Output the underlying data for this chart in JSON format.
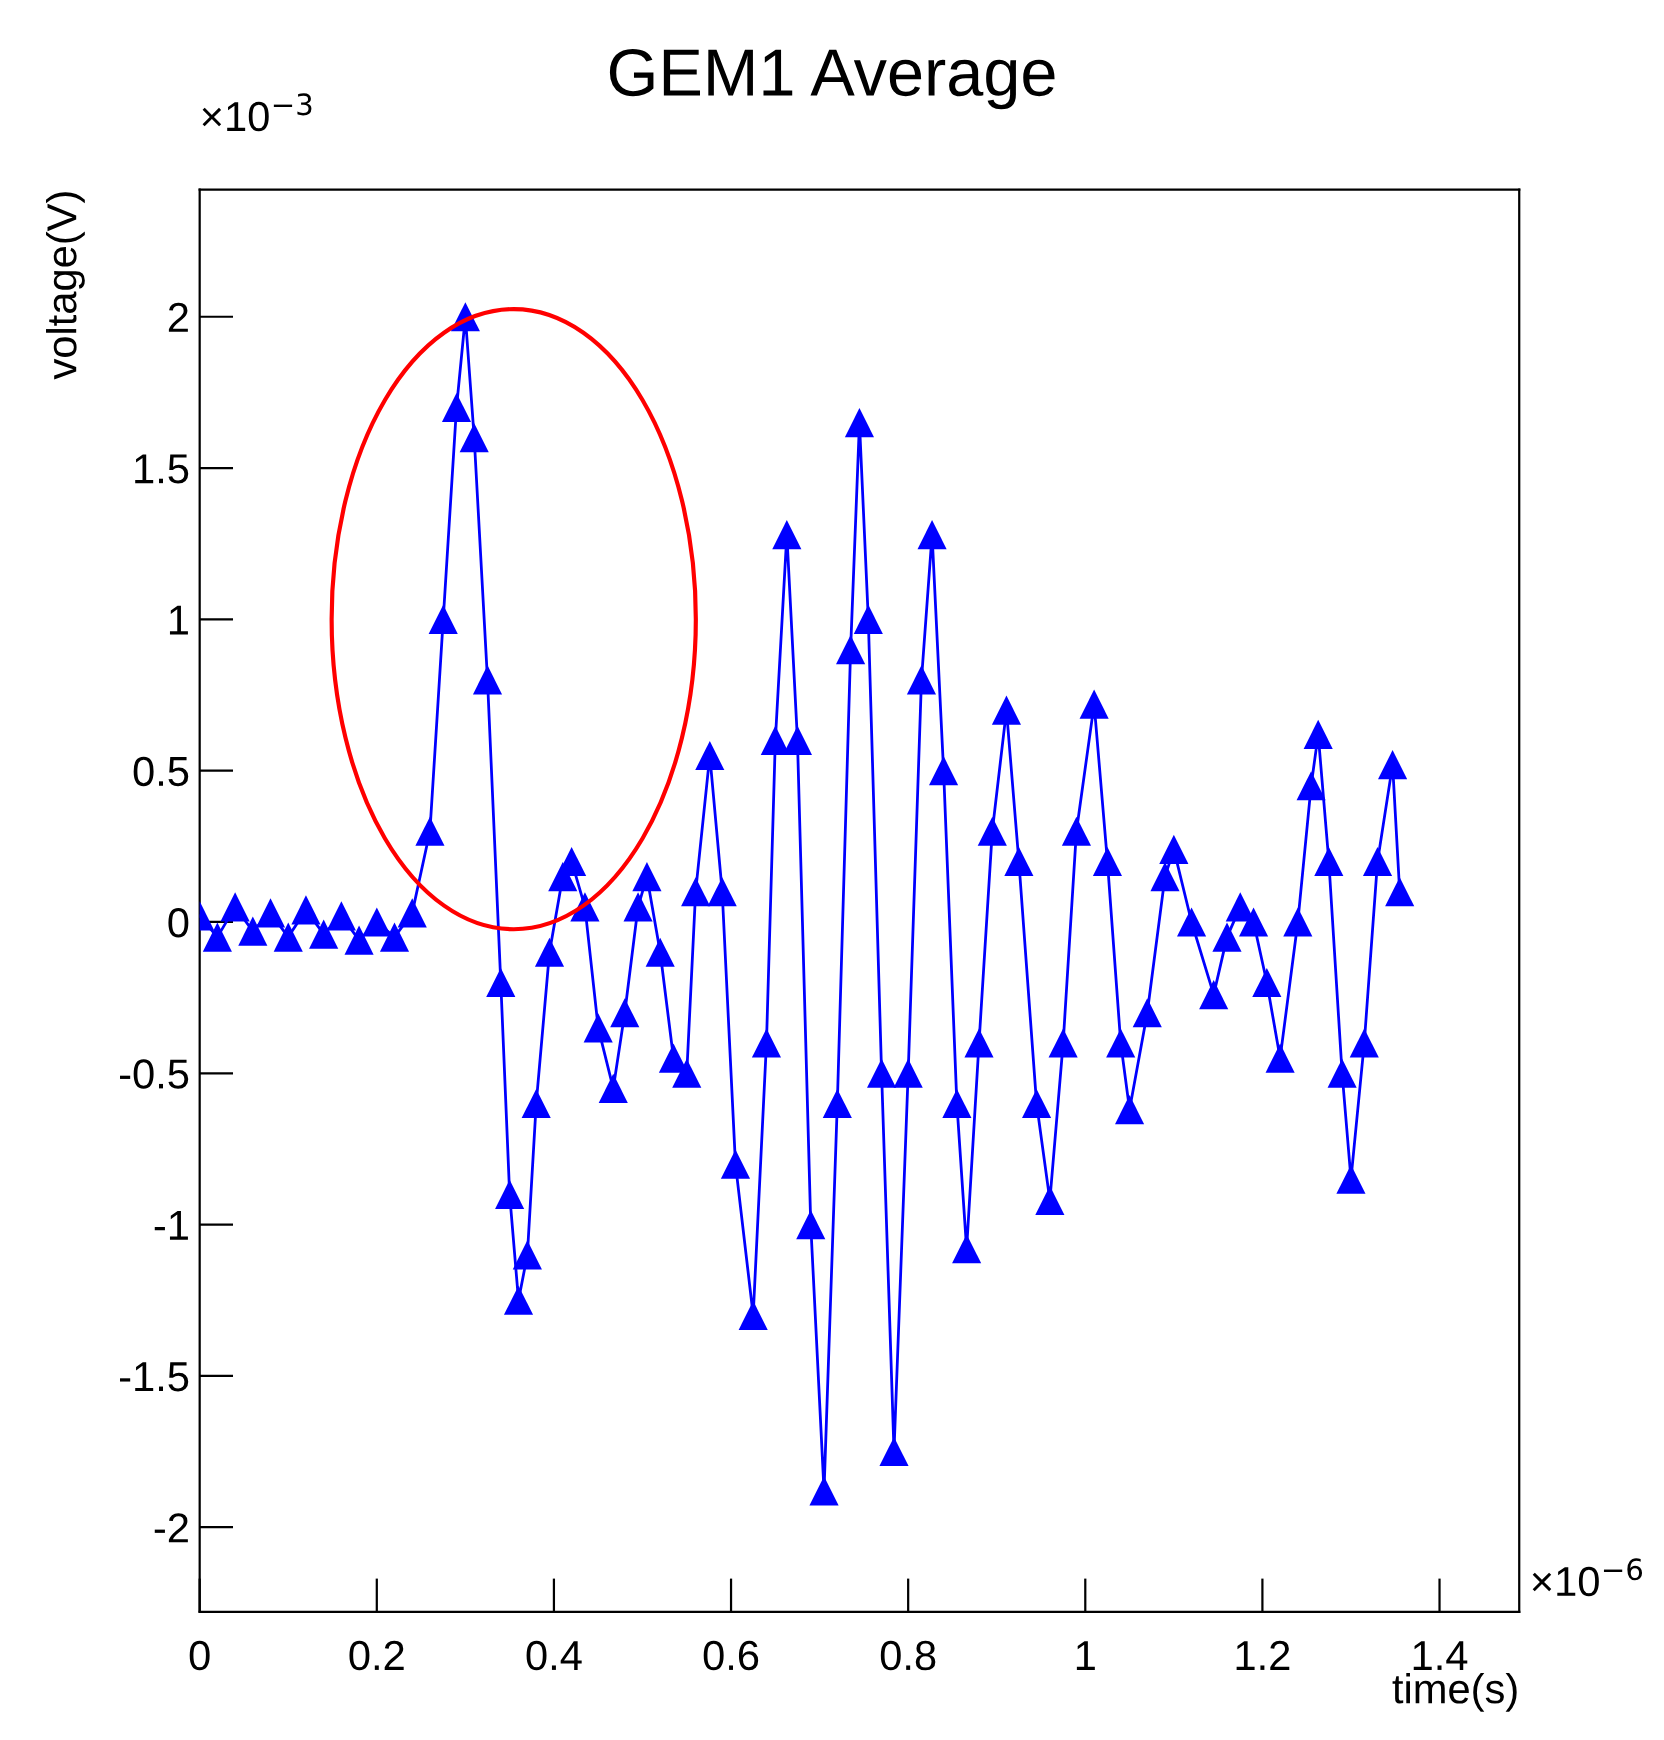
{
  "chart_data": {
    "type": "line",
    "title": "GEM1 Average",
    "xlabel": "time(s)",
    "ylabel": "voltage(V)",
    "annotations": [
      "×10$^{−3}$",
      "×10$^{−6}$"
    ],
    "series": [
      {
        "color": "#0000ff",
        "x": [
          0,
          0.02,
          0.04,
          0.06,
          0.08,
          0.1,
          0.12,
          0.14,
          0.16,
          0.18,
          0.2,
          0.22,
          0.24,
          0.26,
          0.275,
          0.29,
          0.3,
          0.31,
          0.325,
          0.34,
          0.35,
          0.36,
          0.37,
          0.38,
          0.395,
          0.41,
          0.42,
          0.435,
          0.45,
          0.467,
          0.48,
          0.495,
          0.505,
          0.52,
          0.535,
          0.55,
          0.56,
          0.576,
          0.59,
          0.605,
          0.625,
          0.64,
          0.65,
          0.663,
          0.675,
          0.69,
          0.705,
          0.72,
          0.735,
          0.745,
          0.755,
          0.77,
          0.784,
          0.8,
          0.815,
          0.827,
          0.84,
          0.855,
          0.866,
          0.88,
          0.895,
          0.911,
          0.925,
          0.945,
          0.96,
          0.975,
          0.99,
          1.01,
          1.025,
          1.04,
          1.05,
          1.07,
          1.09,
          1.1,
          1.12,
          1.145,
          1.16,
          1.175,
          1.19,
          1.205,
          1.22,
          1.24,
          1.255,
          1.263,
          1.275,
          1.29,
          1.3,
          1.315,
          1.33,
          1.347,
          1.355
        ],
        "values": [
          0.02,
          -0.05,
          0.05,
          -0.03,
          0.03,
          -0.05,
          0.04,
          -0.04,
          0.02,
          -0.06,
          0.0,
          -0.05,
          0.03,
          0.3,
          1.0,
          1.7,
          2.0,
          1.6,
          0.8,
          -0.2,
          -0.9,
          -1.25,
          -1.1,
          -0.6,
          -0.1,
          0.15,
          0.2,
          0.05,
          -0.35,
          -0.55,
          -0.3,
          0.05,
          0.15,
          -0.1,
          -0.45,
          -0.5,
          0.1,
          0.55,
          0.1,
          -0.8,
          -1.3,
          -0.4,
          0.6,
          1.28,
          0.6,
          -1.0,
          -1.88,
          -0.6,
          0.9,
          1.65,
          1.0,
          -0.5,
          -1.75,
          -0.5,
          0.8,
          1.28,
          0.5,
          -0.6,
          -1.08,
          -0.4,
          0.3,
          0.7,
          0.2,
          -0.6,
          -0.92,
          -0.4,
          0.3,
          0.72,
          0.2,
          -0.4,
          -0.62,
          -0.3,
          0.15,
          0.24,
          0.0,
          -0.24,
          -0.05,
          0.05,
          0.0,
          -0.2,
          -0.45,
          0.0,
          0.45,
          0.62,
          0.2,
          -0.5,
          -0.85,
          -0.4,
          0.2,
          0.52,
          0.1
        ]
      }
    ],
    "xlim": [
      0,
      1.49
    ],
    "ylim": [
      -2.28,
      2.42
    ],
    "xticks": [
      0,
      0.2,
      0.4,
      0.6,
      0.8,
      1,
      1.2,
      1.4
    ],
    "yticks": [
      -2,
      -1.5,
      -1,
      -0.5,
      0,
      0.5,
      1,
      1.5,
      2
    ],
    "grid": false,
    "legend": false,
    "marker": "triangle",
    "line_style": "solid"
  }
}
